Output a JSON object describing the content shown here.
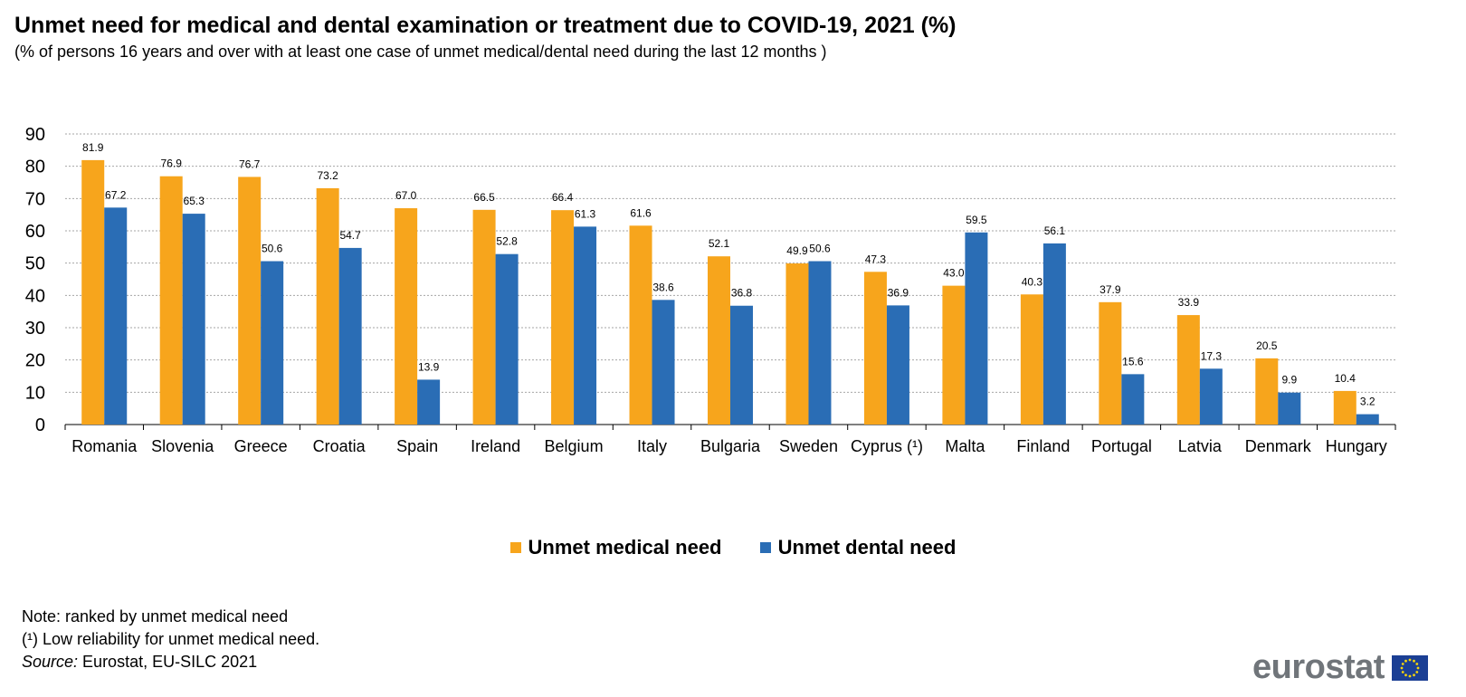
{
  "title": "Unmet need for medical and dental examination or treatment due to COVID-19, 2021 (%)",
  "subtitle": "(% of persons 16 years and over with at least one case of unmet medical/dental need during the last 12 months  )",
  "chart_data": {
    "type": "bar",
    "categories": [
      "Romania",
      "Slovenia",
      "Greece",
      "Croatia",
      "Spain",
      "Ireland",
      "Belgium",
      "Italy",
      "Bulgaria",
      "Sweden",
      "Cyprus (¹)",
      "Malta",
      "Finland",
      "Portugal",
      "Latvia",
      "Denmark",
      "Hungary"
    ],
    "series": [
      {
        "name": "Unmet medical need",
        "color": "#f7a51c",
        "values": [
          81.9,
          76.9,
          76.7,
          73.2,
          67.0,
          66.5,
          66.4,
          61.6,
          52.1,
          49.9,
          47.3,
          43.0,
          40.3,
          37.9,
          33.9,
          20.5,
          10.4
        ]
      },
      {
        "name": "Unmet dental need",
        "color": "#2a6db5",
        "values": [
          67.2,
          65.3,
          50.6,
          54.7,
          13.9,
          52.8,
          61.3,
          38.6,
          36.8,
          50.6,
          36.9,
          59.5,
          56.1,
          15.6,
          17.3,
          9.9,
          3.2
        ]
      }
    ],
    "ylim": [
      0,
      90
    ],
    "yticks": [
      0,
      10,
      20,
      30,
      40,
      50,
      60,
      70,
      80,
      90
    ],
    "grid": true,
    "legend_position": "bottom-center",
    "xlabel": "",
    "ylabel": ""
  },
  "notes": {
    "note": "Note: ranked by unmet medical need",
    "footnote": "(¹) Low reliability for unmet medical need.",
    "source_label": "Source:",
    "source_text": " Eurostat, EU-SILC 2021"
  },
  "logo": {
    "text": "eurostat",
    "flag_color": "#1b3f94",
    "star_color": "#f5d50b"
  }
}
